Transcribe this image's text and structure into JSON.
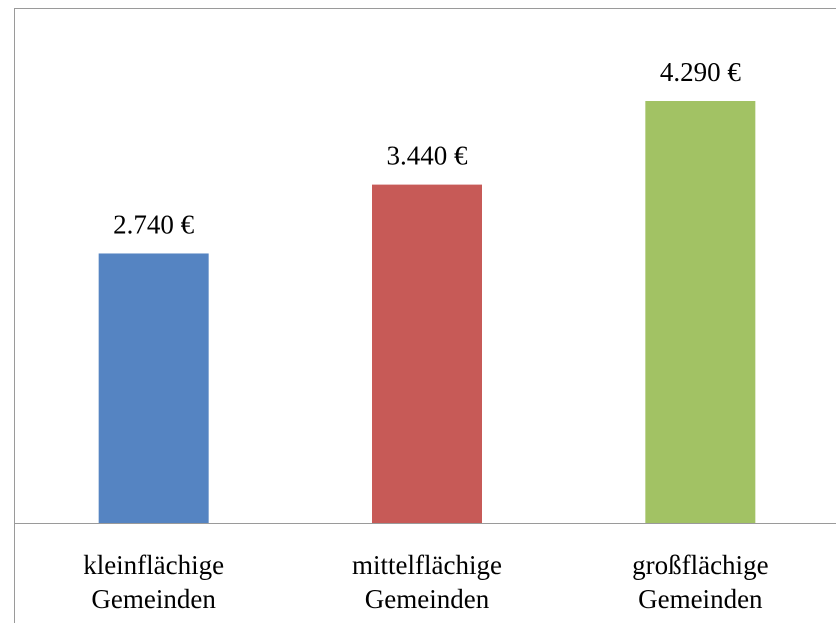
{
  "chart_data": {
    "type": "bar",
    "categories": [
      "kleinflächige Gemeinden",
      "mittelflächige Gemeinden",
      "großflächige Gemeinden"
    ],
    "values": [
      2740,
      3440,
      4290
    ],
    "value_labels": [
      "2.740 €",
      "3.440 €",
      "4.290 €"
    ],
    "colors": [
      "#5584c2",
      "#c75a57",
      "#a2c264"
    ]
  }
}
